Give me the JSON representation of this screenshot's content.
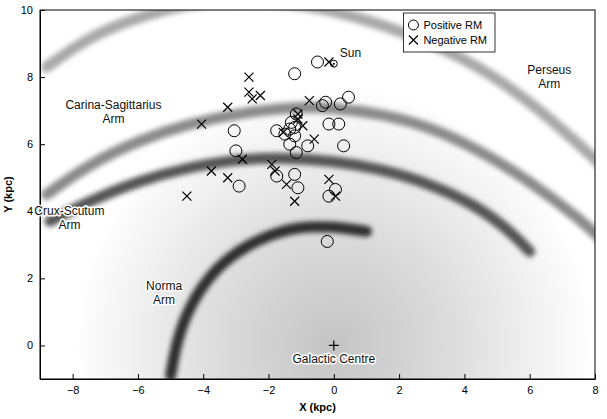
{
  "chart_data": {
    "type": "scatter",
    "xlabel": "X (kpc)",
    "ylabel": "Y (kpc)",
    "xlim": [
      -9,
      8
    ],
    "ylim": [
      -1,
      10
    ],
    "xticks": [
      {
        "value": -8,
        "label": "−8"
      },
      {
        "value": -6,
        "label": "−6"
      },
      {
        "value": -4,
        "label": "−4"
      },
      {
        "value": -2,
        "label": "−2"
      },
      0,
      2,
      4,
      6,
      8
    ],
    "yticks": [
      0,
      2,
      4,
      6,
      8,
      10
    ],
    "grid": false,
    "legend": "upper right",
    "series": [
      {
        "name": "Positive RM",
        "marker": "circle",
        "color": "#000000",
        "x": [
          -0.5,
          -1.2,
          -0.35,
          -0.25,
          0.2,
          0.45,
          -3.05,
          -3.0,
          -2.9,
          -1.75,
          -1.5,
          -1.3,
          -1.2,
          -1.15,
          -1.2,
          -1.35,
          -1.15,
          -0.8,
          -0.15,
          0.15,
          0.3,
          -1.75,
          -1.2,
          -1.1,
          -0.15,
          0.05,
          -0.2,
          -1.35
        ],
        "y": [
          8.45,
          8.1,
          7.15,
          7.25,
          7.2,
          7.4,
          6.4,
          5.8,
          4.75,
          6.4,
          6.3,
          6.65,
          6.5,
          6.9,
          6.25,
          6.0,
          5.75,
          5.95,
          6.6,
          6.6,
          5.95,
          5.05,
          5.1,
          4.7,
          4.45,
          4.65,
          3.1,
          6.45
        ]
      },
      {
        "name": "Negative RM",
        "marker": "x",
        "color": "#000000",
        "x": [
          -0.15,
          -2.6,
          -2.6,
          -2.5,
          -2.25,
          -3.25,
          -4.05,
          -0.75,
          -1.1,
          -0.95,
          -0.6,
          -1.55,
          -1.9,
          -1.8,
          -1.45,
          -2.8,
          -3.25,
          -3.75,
          -4.5,
          -1.2,
          -0.15,
          0.05,
          -1.1
        ],
        "y": [
          8.45,
          8.0,
          7.55,
          7.35,
          7.45,
          7.1,
          6.6,
          7.3,
          6.75,
          6.55,
          6.15,
          6.35,
          5.4,
          5.2,
          4.8,
          5.55,
          5.0,
          5.2,
          4.45,
          4.3,
          4.95,
          4.45,
          6.9
        ]
      }
    ],
    "arms": [
      {
        "name": "Perseus Arm",
        "color": "#a8a8a8",
        "label_x": 6.6,
        "label_y": 8.0,
        "x": [
          -8.8,
          -7.5,
          -6,
          -4,
          -2,
          0,
          2,
          4,
          6,
          7.5,
          8.5
        ],
        "y": [
          8.3,
          9.2,
          9.8,
          10.3,
          10.3,
          10.0,
          9.4,
          8.6,
          7.3,
          6.0,
          5.1
        ]
      },
      {
        "name": "Carina-Sagittarius Arm",
        "color": "#8a8a8a",
        "label_x": -6.75,
        "label_y": 6.95,
        "x": [
          -8.8,
          -7.5,
          -6,
          -4.5,
          -3,
          -1.5,
          0,
          1.5,
          3,
          4.5,
          6,
          7.5,
          8.5
        ],
        "y": [
          4.5,
          5.4,
          6.1,
          6.6,
          6.9,
          7.1,
          7.1,
          6.9,
          6.5,
          5.8,
          4.9,
          3.8,
          2.9
        ]
      },
      {
        "name": "Crux-Scutum Arm",
        "color": "#555555",
        "label_x": -8.1,
        "label_y": 3.8,
        "x": [
          -8.7,
          -7.5,
          -6,
          -4.5,
          -3,
          -1.5,
          0,
          1.5,
          3,
          4.3,
          5.3,
          6.0
        ],
        "y": [
          3.7,
          4.3,
          4.9,
          5.3,
          5.55,
          5.6,
          5.5,
          5.25,
          4.8,
          4.2,
          3.5,
          2.8
        ]
      },
      {
        "name": "Norma Arm",
        "color": "#2e2e2e",
        "label_x": -5.2,
        "label_y": 1.55,
        "x": [
          1.0,
          0,
          -1.0,
          -2.0,
          -3.0,
          -3.8,
          -4.4,
          -4.8,
          -5.0
        ],
        "y": [
          3.4,
          3.55,
          3.55,
          3.3,
          2.8,
          2.1,
          1.2,
          0.2,
          -0.9
        ]
      }
    ],
    "annotations": [
      {
        "text": "Sun",
        "marker": "sun",
        "x": 0,
        "y": 8.4
      },
      {
        "text": "Galactic Centre",
        "marker": "plus",
        "x": 0,
        "y": 0
      }
    ]
  }
}
